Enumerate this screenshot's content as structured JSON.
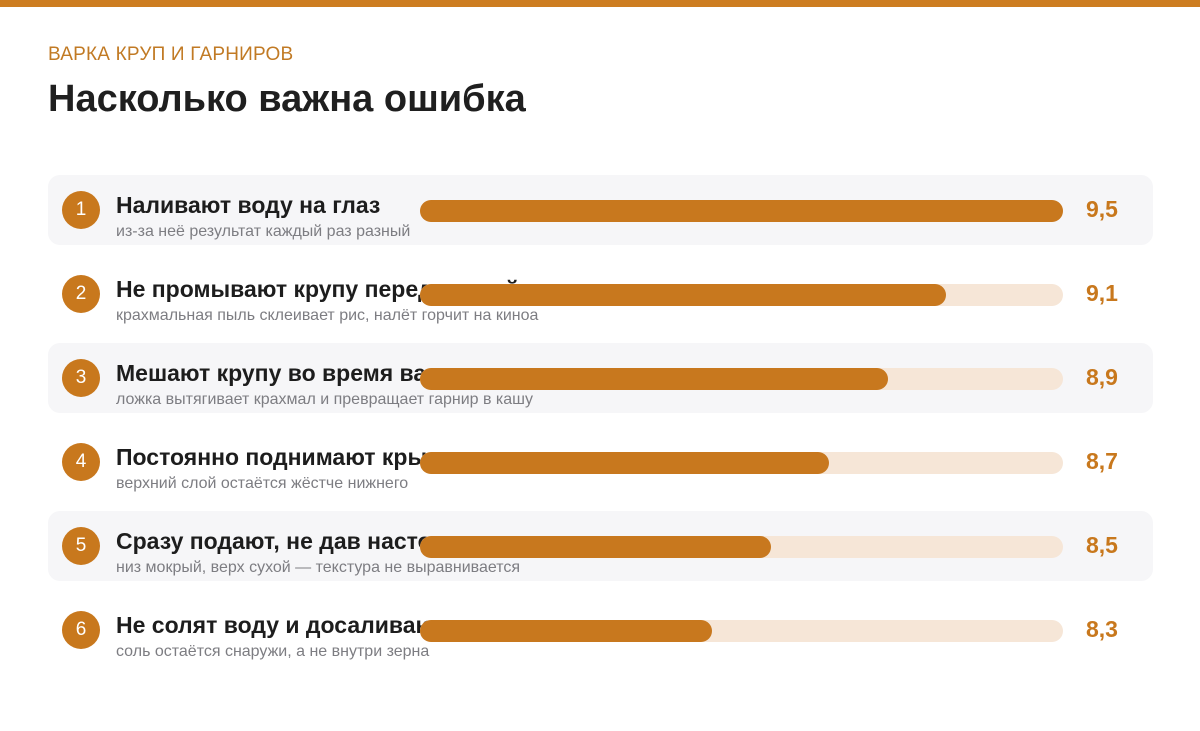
{
  "header": {
    "kicker": "ВАРКА КРУП И ГАРНИРОВ",
    "title": "Насколько важна ошибка"
  },
  "colors": {
    "accent": "#c8781d",
    "track": "#f6e6d7",
    "row_shade": "#f6f6f8"
  },
  "chart_data": {
    "type": "bar",
    "orientation": "horizontal",
    "title": "Насколько важна ошибка",
    "xlim": [
      0,
      9.5
    ],
    "rows": [
      {
        "rank": "1",
        "label": "Наливают воду на глаз",
        "desc": "из-за неё результат каждый раз разный",
        "value": 9.5,
        "value_label": "9,5"
      },
      {
        "rank": "2",
        "label": "Не промывают крупу перед варкой",
        "desc": "крахмальная пыль склеивает рис, налёт горчит на киноа",
        "value": 9.1,
        "value_label": "9,1"
      },
      {
        "rank": "3",
        "label": "Мешают крупу во время варки",
        "desc": "ложка вытягивает крахмал и превращает гарнир в кашу",
        "value": 8.9,
        "value_label": "8,9"
      },
      {
        "rank": "4",
        "label": "Постоянно поднимают крышку",
        "desc": "верхний слой остаётся жёстче нижнего",
        "value": 8.7,
        "value_label": "8,7"
      },
      {
        "rank": "5",
        "label": "Сразу подают, не дав настояться",
        "desc": "низ мокрый, верх сухой — текстура не выравнивается",
        "value": 8.5,
        "value_label": "8,5"
      },
      {
        "rank": "6",
        "label": "Не солят воду и досаливают готовое",
        "desc": "соль остаётся снаружи, а не внутри зерна",
        "value": 8.3,
        "value_label": "8,3"
      }
    ]
  }
}
